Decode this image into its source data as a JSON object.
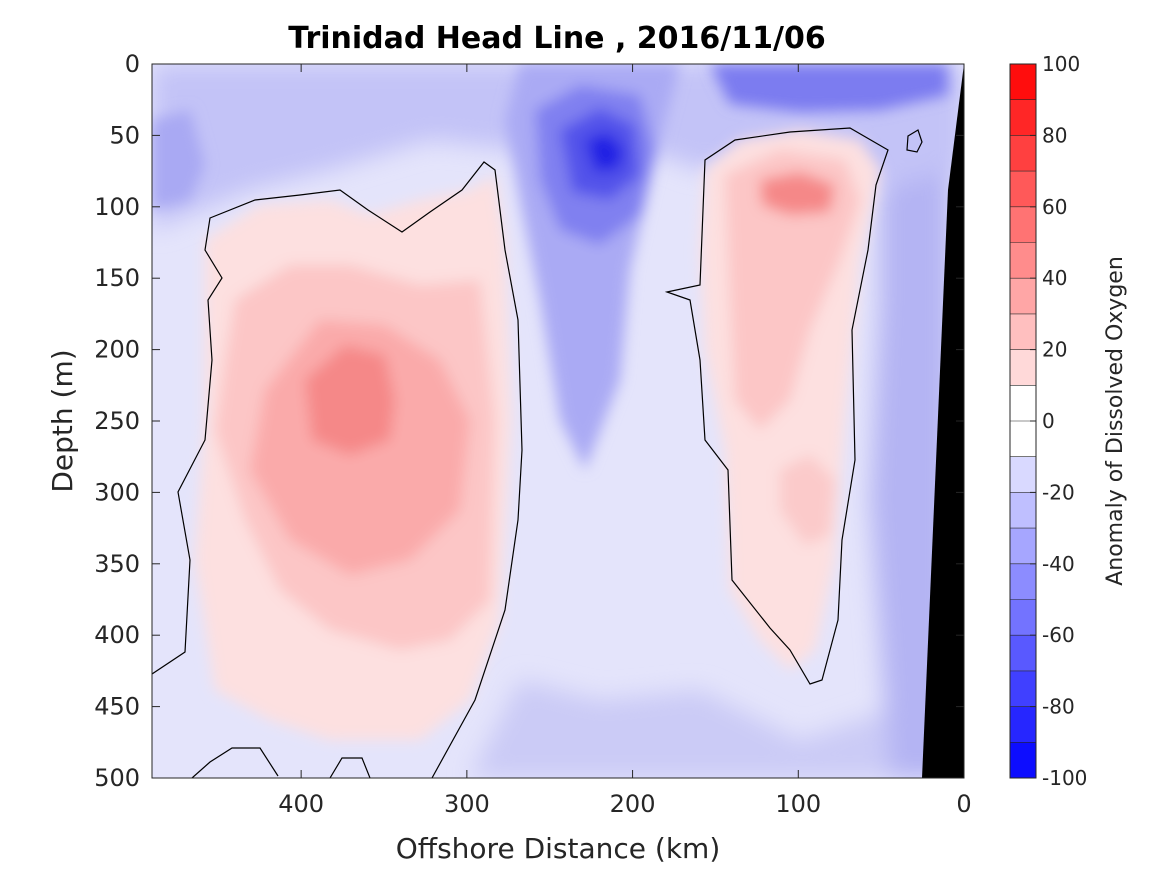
{
  "chart_data": {
    "type": "heatmap",
    "title": "Trinidad Head Line , 2016/11/06",
    "xlabel": "Offshore Distance (km)",
    "ylabel": "Depth (m)",
    "xlim": [
      490,
      0
    ],
    "ylim": [
      0,
      500
    ],
    "x_ticks": [
      400,
      300,
      200,
      100,
      0
    ],
    "x_tick_labels": [
      "400",
      "300",
      "200",
      "100",
      "0"
    ],
    "y_ticks": [
      0,
      50,
      100,
      150,
      200,
      250,
      300,
      350,
      400,
      450,
      500
    ],
    "y_tick_labels": [
      "0",
      "50",
      "100",
      "150",
      "200",
      "250",
      "300",
      "350",
      "400",
      "450",
      "500"
    ],
    "colorbar": {
      "label": "Anomaly of Dissolved Oxygen",
      "range": [
        -100,
        100
      ],
      "levels": [
        -100,
        -90,
        -80,
        -70,
        -60,
        -50,
        -40,
        -30,
        -20,
        -10,
        0,
        10,
        20,
        30,
        40,
        50,
        60,
        70,
        80,
        90,
        100
      ],
      "ticks": [
        100,
        80,
        60,
        40,
        20,
        0,
        -20,
        -40,
        -60,
        -80,
        -100
      ],
      "tick_labels": [
        "100",
        "80",
        "60",
        "40",
        "20",
        "0",
        "-20",
        "-40",
        "-60",
        "-80",
        "-100"
      ],
      "colormap": "blue-white-red",
      "color_low": "#0000ff",
      "color_mid": "#ffffff",
      "color_high": "#ff0000"
    },
    "features": [
      {
        "x": 370,
        "y": 230,
        "value": 45,
        "radius_x": 70,
        "radius_y": 180
      },
      {
        "x": 100,
        "y": 95,
        "value": 42,
        "radius_x": 35,
        "radius_y": 80
      },
      {
        "x": 85,
        "y": 310,
        "value": 25,
        "radius_x": 28,
        "radius_y": 55
      },
      {
        "x": 220,
        "y": 70,
        "value": -70,
        "radius_x": 45,
        "radius_y": 70
      },
      {
        "x": 120,
        "y": 20,
        "value": -45,
        "radius_x": 90,
        "radius_y": 40
      },
      {
        "x": 30,
        "y": 400,
        "value": -35,
        "radius_x": 35,
        "radius_y": 200
      },
      {
        "x": 470,
        "y": 60,
        "value": -30,
        "radius_x": 40,
        "radius_y": 90
      }
    ],
    "land_mask": "seafloor at shelf edge near 0-25 km",
    "zero_contour_color": "#000000",
    "land_color": "#000000"
  }
}
